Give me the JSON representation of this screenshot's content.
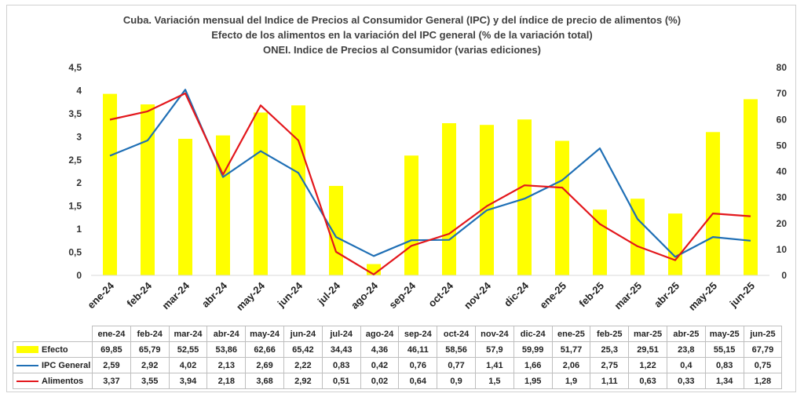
{
  "chart_data": {
    "type": "bar+line",
    "title": [
      "Cuba. Variación mensual del Indice de Precios al Consumidor General  (IPC) y del índice de precio de alimentos (%)",
      "Efecto de los alimentos en la variación del IPC general (%  de la variación total)",
      "ONEI. Indice de Precios al Consumidor (varias ediciones)"
    ],
    "categories": [
      "ene-24",
      "feb-24",
      "mar-24",
      "abr-24",
      "may-24",
      "jun-24",
      "jul-24",
      "ago-24",
      "sep-24",
      "oct-24",
      "nov-24",
      "dic-24",
      "ene-25",
      "feb-25",
      "mar-25",
      "abr-25",
      "may-25",
      "jun-25"
    ],
    "left_axis": {
      "ticks": [
        "0",
        "0,5",
        "1",
        "1,5",
        "2",
        "2,5",
        "3",
        "3,5",
        "4",
        "4,5"
      ],
      "ylim": [
        0,
        4.5
      ]
    },
    "right_axis": {
      "ticks": [
        "0",
        "10",
        "20",
        "30",
        "40",
        "50",
        "60",
        "70",
        "80"
      ],
      "ylim": [
        0,
        80
      ]
    },
    "series": [
      {
        "name": "Efecto",
        "type": "bar",
        "axis": "right",
        "color": "#ffff00",
        "values": [
          69.85,
          65.79,
          52.55,
          53.86,
          62.66,
          65.42,
          34.43,
          4.36,
          46.11,
          58.56,
          57.9,
          59.99,
          51.77,
          25.3,
          29.51,
          23.8,
          55.15,
          67.79
        ],
        "labels": [
          "69,85",
          "65,79",
          "52,55",
          "53,86",
          "62,66",
          "65,42",
          "34,43",
          "4,36",
          "46,11",
          "58,56",
          "57,9",
          "59,99",
          "51,77",
          "25,3",
          "29,51",
          "23,8",
          "55,15",
          "67,79"
        ]
      },
      {
        "name": "IPC General",
        "type": "line",
        "axis": "left",
        "color": "#1f6fb5",
        "values": [
          2.59,
          2.92,
          4.02,
          2.13,
          2.69,
          2.22,
          0.83,
          0.42,
          0.76,
          0.77,
          1.41,
          1.66,
          2.06,
          2.75,
          1.22,
          0.4,
          0.83,
          0.75
        ],
        "labels": [
          "2,59",
          "2,92",
          "4,02",
          "2,13",
          "2,69",
          "2,22",
          "0,83",
          "0,42",
          "0,76",
          "0,77",
          "1,41",
          "1,66",
          "2,06",
          "2,75",
          "1,22",
          "0,4",
          "0,83",
          "0,75"
        ]
      },
      {
        "name": "Alimentos",
        "type": "line",
        "axis": "left",
        "color": "#e3171c",
        "values": [
          3.37,
          3.55,
          3.94,
          2.18,
          3.68,
          2.92,
          0.51,
          0.02,
          0.64,
          0.9,
          1.5,
          1.95,
          1.9,
          1.11,
          0.63,
          0.33,
          1.34,
          1.28
        ],
        "labels": [
          "3,37",
          "3,55",
          "3,94",
          "2,18",
          "3,68",
          "2,92",
          "0,51",
          "0,02",
          "0,64",
          "0,9",
          "1,5",
          "1,95",
          "1,9",
          "1,11",
          "0,63",
          "0,33",
          "1,34",
          "1,28"
        ]
      }
    ]
  }
}
